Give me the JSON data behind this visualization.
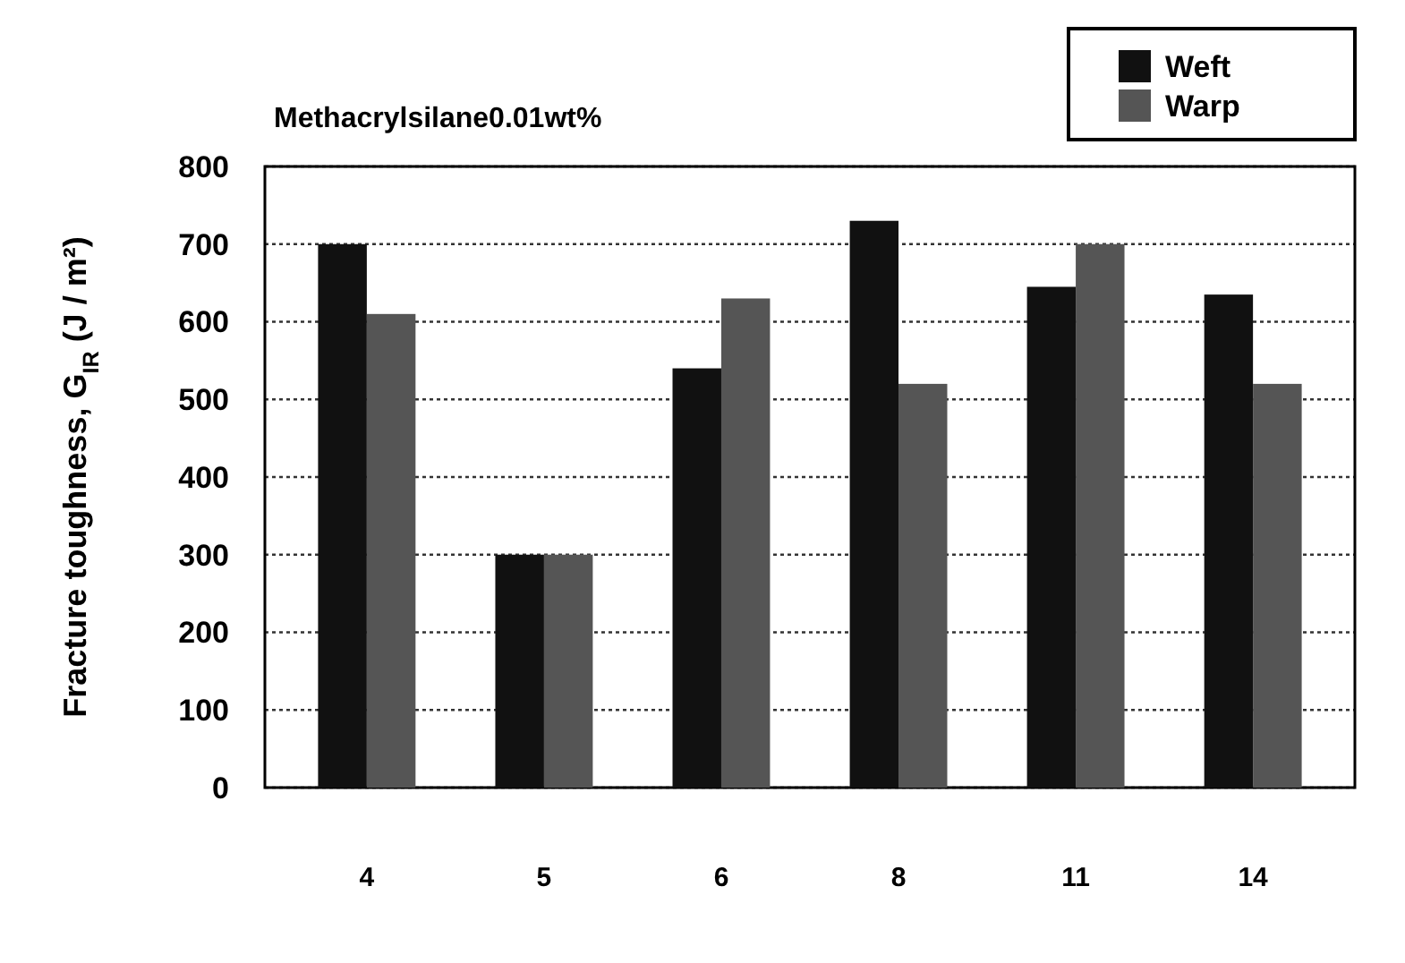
{
  "chart_data": {
    "type": "bar",
    "title": "Methacrylsilane0.01wt%",
    "ylabel": "Fracture toughness, G$_{IR}$ (J / m²)",
    "categories": [
      "4",
      "5",
      "6",
      "8",
      "11",
      "14"
    ],
    "series": [
      {
        "name": "Weft",
        "color": "#111111",
        "values": [
          700,
          300,
          540,
          730,
          645,
          635
        ]
      },
      {
        "name": "Warp",
        "color": "#555555",
        "values": [
          610,
          300,
          630,
          520,
          700,
          520
        ]
      }
    ],
    "ylim": [
      0,
      800
    ],
    "yticks": [
      0,
      100,
      200,
      300,
      400,
      500,
      600,
      700,
      800
    ],
    "grid": "y",
    "legend": "top right"
  }
}
